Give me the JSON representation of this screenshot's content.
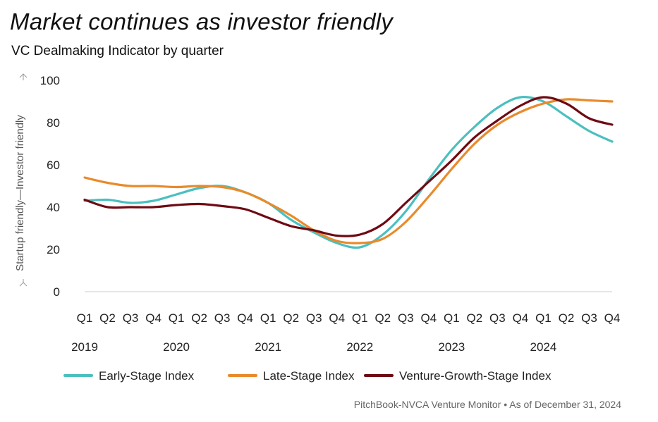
{
  "title": "Market continues as investor friendly",
  "subtitle": "VC Dealmaking Indicator by quarter",
  "source": "PitchBook-NVCA Venture Monitor  •  As of December 31, 2024",
  "chart_data": {
    "type": "line",
    "ylabel": "Startup friendly—Investor friendly",
    "ylim": [
      0,
      100
    ],
    "yticks": [
      0,
      20,
      40,
      60,
      80,
      100
    ],
    "grid": false,
    "legend_position": "bottom",
    "x": [
      "Q1",
      "Q2",
      "Q3",
      "Q4",
      "Q1",
      "Q2",
      "Q3",
      "Q4",
      "Q1",
      "Q2",
      "Q3",
      "Q4",
      "Q1",
      "Q2",
      "Q3",
      "Q4",
      "Q1",
      "Q2",
      "Q3",
      "Q4",
      "Q1",
      "Q2",
      "Q3",
      "Q4"
    ],
    "years": [
      "2019",
      "2020",
      "2021",
      "2022",
      "2023",
      "2024"
    ],
    "series": [
      {
        "name": "Early-Stage Index",
        "color": "#4bbfbf",
        "values": [
          43,
          43.5,
          42,
          43,
          46,
          49,
          50,
          47,
          42,
          34,
          28,
          23,
          21,
          27,
          38,
          53,
          67,
          78,
          87,
          92,
          90,
          83,
          76,
          71
        ]
      },
      {
        "name": "Late-Stage Index",
        "color": "#e98a2b",
        "values": [
          54,
          51.5,
          50,
          50,
          49.5,
          50,
          49.5,
          47,
          42,
          36,
          29,
          24,
          23,
          25,
          33,
          45,
          58,
          70,
          79,
          85,
          89,
          91,
          90.5,
          90
        ]
      },
      {
        "name": "Venture-Growth-Stage Index",
        "color": "#6e0a13",
        "values": [
          43.5,
          40,
          40,
          40,
          41,
          41.5,
          40.5,
          39,
          35,
          31,
          29,
          26.5,
          27,
          32,
          42,
          52,
          62,
          73,
          81,
          88,
          92,
          89,
          82,
          79
        ]
      }
    ]
  }
}
